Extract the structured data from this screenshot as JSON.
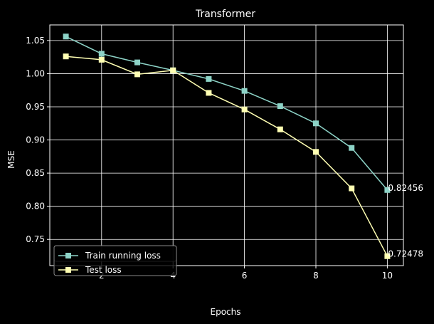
{
  "chart_data": {
    "type": "line",
    "title": "Transformer",
    "xlabel": "Epochs",
    "ylabel": "MSE",
    "x": [
      1,
      2,
      3,
      4,
      5,
      6,
      7,
      8,
      9,
      10
    ],
    "xlim": [
      0.55,
      10.45
    ],
    "ylim": [
      0.7105,
      1.0735
    ],
    "xticks": [
      2,
      4,
      6,
      8,
      10
    ],
    "yticks": [
      0.75,
      0.8,
      0.85,
      0.9,
      0.95,
      1.0,
      1.05
    ],
    "ytick_labels": [
      "0.75",
      "0.80",
      "0.85",
      "0.90",
      "0.95",
      "1.00",
      "1.05"
    ],
    "grid": true,
    "legend_position": "lower-left",
    "series": [
      {
        "name": "Train running loss",
        "color": "#8dd3c7",
        "marker": "square",
        "values": [
          1.056,
          1.03,
          1.017,
          1.005,
          0.992,
          0.974,
          0.951,
          0.925,
          0.888,
          0.82456
        ]
      },
      {
        "name": "Test loss",
        "color": "#ffffb3",
        "marker": "square",
        "values": [
          1.026,
          1.021,
          0.999,
          1.005,
          0.971,
          0.946,
          0.916,
          0.882,
          0.827,
          0.72478
        ]
      }
    ],
    "annotations": [
      {
        "text": "0.82456",
        "x": 10,
        "y": 0.82456
      },
      {
        "text": "0.72478",
        "x": 10,
        "y": 0.72478
      }
    ]
  }
}
